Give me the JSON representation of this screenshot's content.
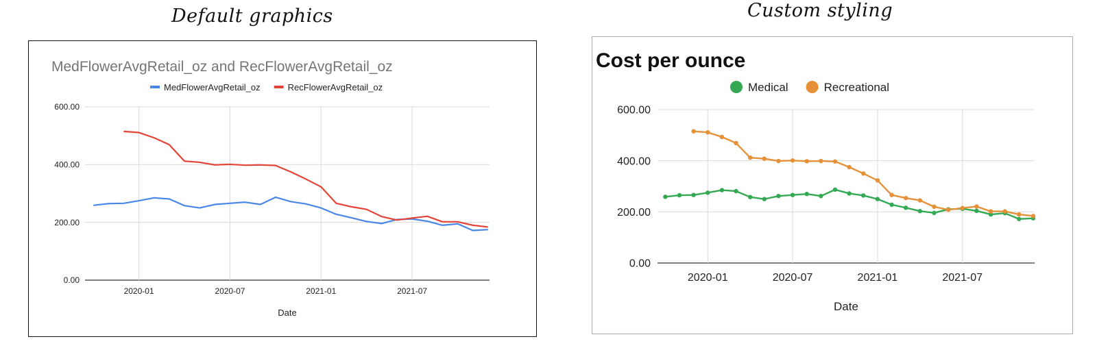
{
  "captions": {
    "left": "Default graphics",
    "right": "Custom styling"
  },
  "chart_data": [
    {
      "type": "line",
      "title": "MedFlowerAvgRetail_oz and RecFlowerAvgRetail_oz",
      "xlabel": "Date",
      "ylabel": "",
      "x_ticks": [
        "2020-01",
        "2020-07",
        "2021-01",
        "2021-07"
      ],
      "y_ticks": [
        "0.00",
        "200.00",
        "400.00",
        "600.00"
      ],
      "ylim": [
        0,
        600
      ],
      "grid": true,
      "legend_position": "top-center",
      "series": [
        {
          "name": "MedFlowerAvgRetail_oz",
          "color": "#4a86e8",
          "x": [
            "2019-10",
            "2019-11",
            "2019-12",
            "2020-01",
            "2020-02",
            "2020-03",
            "2020-04",
            "2020-05",
            "2020-06",
            "2020-07",
            "2020-08",
            "2020-09",
            "2020-10",
            "2020-11",
            "2020-12",
            "2021-01",
            "2021-02",
            "2021-03",
            "2021-04",
            "2021-05",
            "2021-06",
            "2021-07",
            "2021-08",
            "2021-09",
            "2021-10",
            "2021-11",
            "2021-12"
          ],
          "values": [
            259,
            265,
            266,
            275,
            285,
            281,
            258,
            250,
            262,
            266,
            270,
            262,
            287,
            272,
            264,
            250,
            228,
            216,
            203,
            196,
            210,
            212,
            204,
            190,
            195,
            172,
            175
          ]
        },
        {
          "name": "RecFlowerAvgRetail_oz",
          "color": "#e54335",
          "x": [
            "2019-12",
            "2020-01",
            "2020-02",
            "2020-03",
            "2020-04",
            "2020-05",
            "2020-06",
            "2020-07",
            "2020-08",
            "2020-09",
            "2020-10",
            "2020-11",
            "2020-12",
            "2021-01",
            "2021-02",
            "2021-03",
            "2021-04",
            "2021-05",
            "2021-06",
            "2021-07",
            "2021-08",
            "2021-09",
            "2021-10",
            "2021-11",
            "2021-12"
          ],
          "values": [
            515,
            511,
            493,
            469,
            412,
            408,
            399,
            401,
            398,
            399,
            397,
            375,
            350,
            323,
            266,
            254,
            245,
            220,
            208,
            215,
            221,
            202,
            202,
            190,
            184
          ]
        }
      ]
    },
    {
      "type": "line",
      "title": "Cost per ounce",
      "xlabel": "Date",
      "ylabel": "",
      "x_ticks": [
        "2020-01",
        "2020-07",
        "2021-01",
        "2021-07"
      ],
      "y_ticks": [
        "0.00",
        "200.00",
        "400.00",
        "600.00"
      ],
      "ylim": [
        0,
        600
      ],
      "grid": true,
      "legend_position": "top-center",
      "series": [
        {
          "name": "Medical",
          "color": "#34a853",
          "x": [
            "2019-10",
            "2019-11",
            "2019-12",
            "2020-01",
            "2020-02",
            "2020-03",
            "2020-04",
            "2020-05",
            "2020-06",
            "2020-07",
            "2020-08",
            "2020-09",
            "2020-10",
            "2020-11",
            "2020-12",
            "2021-01",
            "2021-02",
            "2021-03",
            "2021-04",
            "2021-05",
            "2021-06",
            "2021-07",
            "2021-08",
            "2021-09",
            "2021-10",
            "2021-11",
            "2021-12"
          ],
          "values": [
            259,
            265,
            266,
            275,
            285,
            281,
            258,
            250,
            262,
            266,
            270,
            262,
            287,
            272,
            264,
            250,
            228,
            216,
            203,
            196,
            210,
            212,
            204,
            190,
            195,
            172,
            175
          ]
        },
        {
          "name": "Recreational",
          "color": "#e69138",
          "x": [
            "2019-12",
            "2020-01",
            "2020-02",
            "2020-03",
            "2020-04",
            "2020-05",
            "2020-06",
            "2020-07",
            "2020-08",
            "2020-09",
            "2020-10",
            "2020-11",
            "2020-12",
            "2021-01",
            "2021-02",
            "2021-03",
            "2021-04",
            "2021-05",
            "2021-06",
            "2021-07",
            "2021-08",
            "2021-09",
            "2021-10",
            "2021-11",
            "2021-12"
          ],
          "values": [
            515,
            511,
            493,
            469,
            412,
            408,
            399,
            401,
            398,
            399,
            397,
            375,
            350,
            323,
            266,
            254,
            245,
            220,
            208,
            215,
            221,
            202,
            202,
            190,
            184
          ]
        }
      ]
    }
  ]
}
